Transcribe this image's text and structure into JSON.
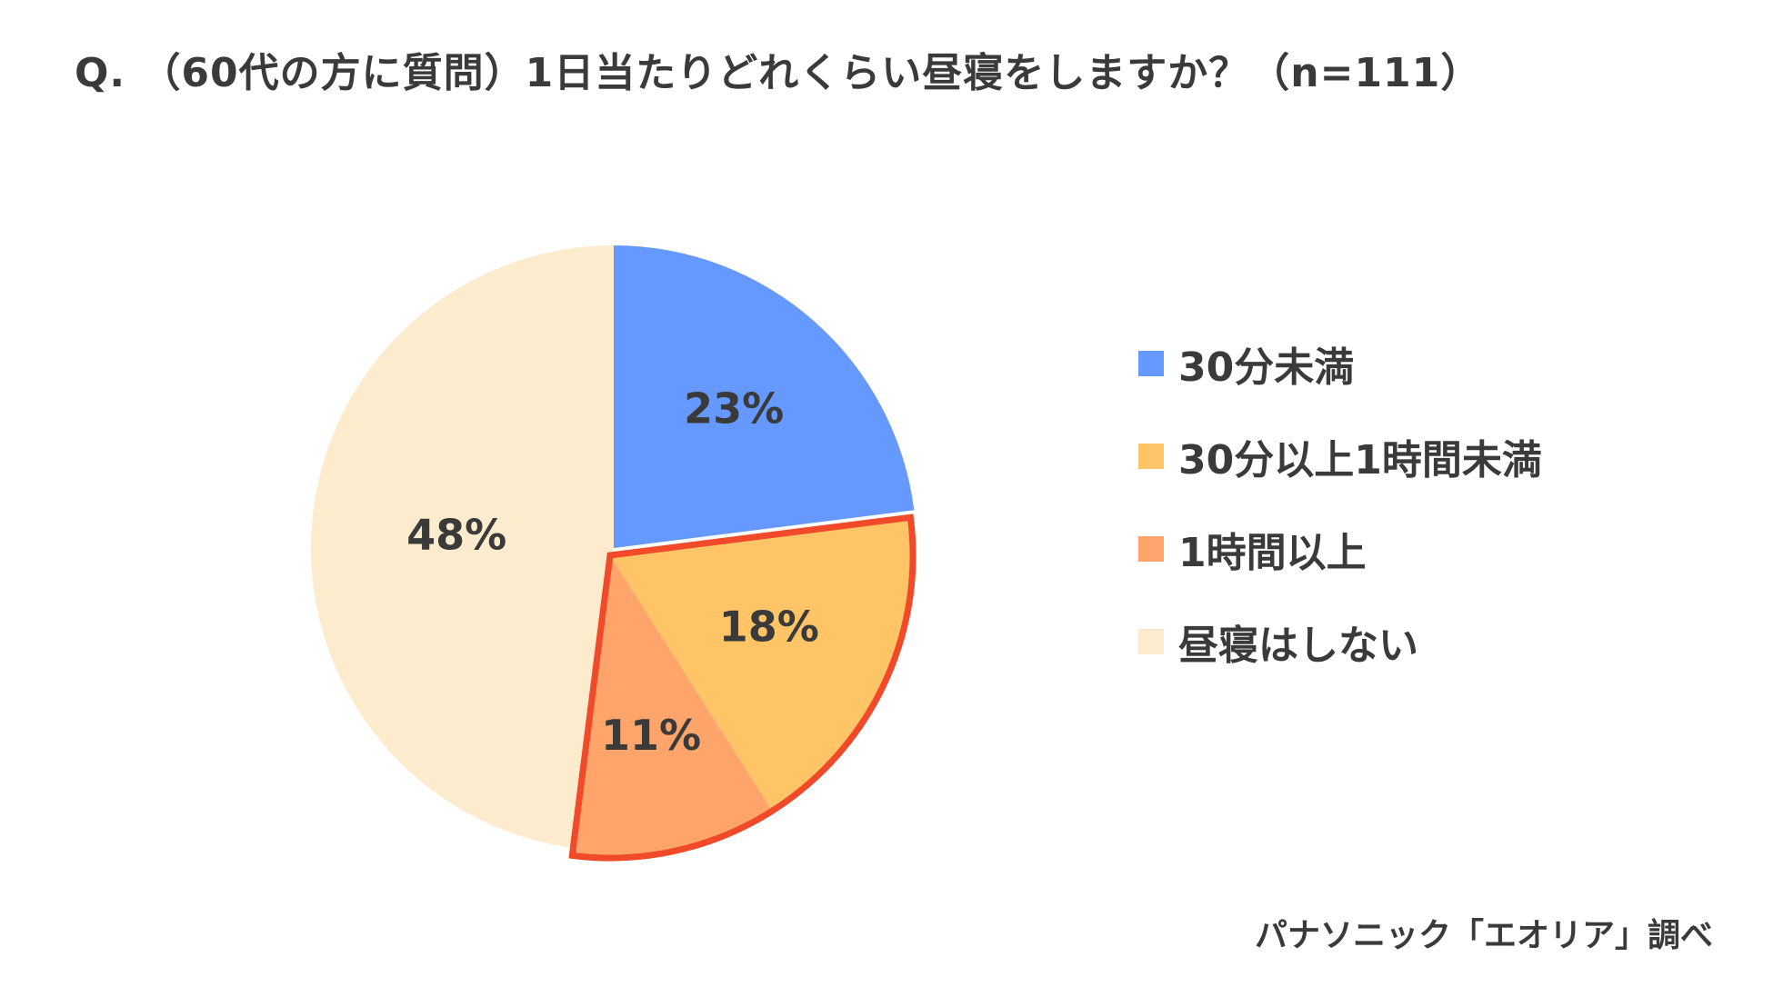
{
  "title": "Q. （60代の方に質問）1日当たりどれくらい昼寝をしますか？（n=111）",
  "source": "パナソニック「エオリア」調べ",
  "chart_data": {
    "type": "pie",
    "title": "Q. （60代の方に質問）1日当たりどれくらい昼寝をしますか？（n=111）",
    "start": "12 o'clock, clockwise",
    "legend_position": "right",
    "slices": [
      {
        "label": "30分未満",
        "value": 23,
        "value_label": "23%",
        "color": "#6699FF"
      },
      {
        "label": "30分以上1時間未満",
        "value": 18,
        "value_label": "18%",
        "color": "#FFC466"
      },
      {
        "label": "1時間以上",
        "value": 11,
        "value_label": "11%",
        "color": "#FFA56B"
      },
      {
        "label": "昼寝はしない",
        "value": 48,
        "value_label": "48%",
        "color": "#FDEBCE"
      }
    ],
    "highlight": {
      "slices": [
        "30分以上1時間未満",
        "1時間以上"
      ],
      "outline_color": "#F04A2A"
    }
  }
}
